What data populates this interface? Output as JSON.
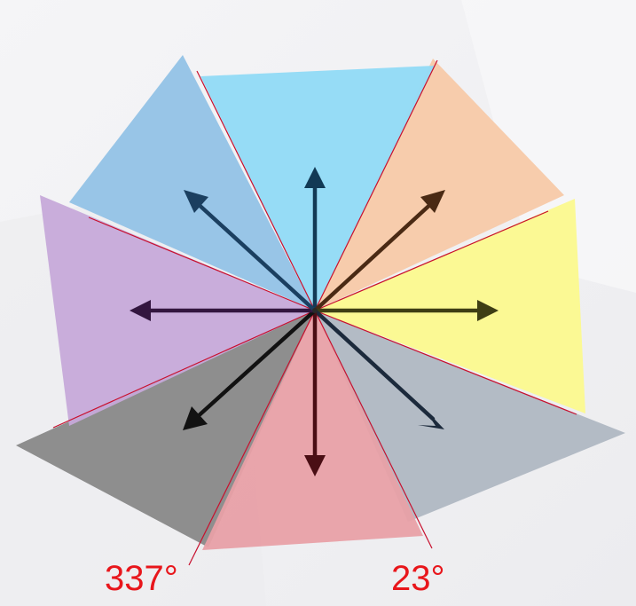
{
  "diagram": {
    "labels": {
      "left_angle": "337°",
      "right_angle": "23°"
    },
    "colors": {
      "label_red": "#e8161b",
      "guide_line_red": "#c8102e",
      "sector_n": "#93dbf6",
      "sector_ne": "#f7c9a8",
      "sector_e": "#fbf98e",
      "sector_se": "#aeb6c1",
      "sector_s": "#e8a0a6",
      "sector_sw": "#858585",
      "sector_w": "#c6a9d9",
      "sector_nw": "#92c2e6",
      "arrow_n": "#123a55",
      "arrow_ne": "#4a2a14",
      "arrow_e": "#3e3e14",
      "arrow_se": "#1c2a3c",
      "arrow_s": "#4a0e14",
      "arrow_sw": "#121212",
      "arrow_w": "#33163f",
      "arrow_nw": "#1b3f60"
    }
  }
}
